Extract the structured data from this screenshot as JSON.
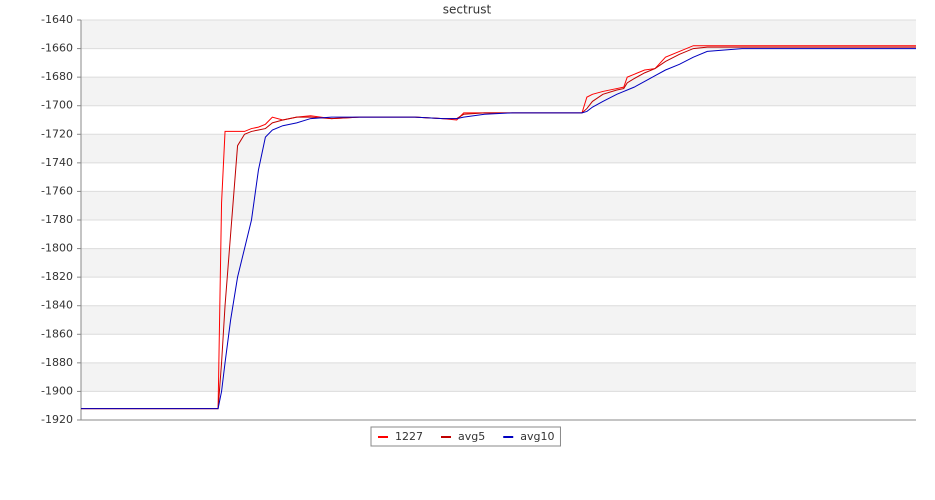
{
  "chart_data": {
    "type": "line",
    "title": "sectrust",
    "x": [
      0,
      19.7,
      20.2,
      20.7,
      21.5,
      22.5,
      23.5,
      24.5,
      25.5,
      26.5,
      27.5,
      29,
      31,
      33,
      36,
      40,
      44,
      48,
      52,
      54,
      55,
      58,
      62,
      66,
      70,
      72,
      72.7,
      73.5,
      75,
      77,
      78,
      78.5,
      79.5,
      81,
      82.5,
      84,
      86,
      88,
      90,
      95,
      100,
      110,
      120
    ],
    "xlim": [
      0,
      120
    ],
    "ylim": [
      -1920,
      -1640
    ],
    "yticks": [
      -1920,
      -1900,
      -1880,
      -1860,
      -1840,
      -1820,
      -1800,
      -1780,
      -1760,
      -1740,
      -1720,
      -1700,
      -1680,
      -1660,
      -1640
    ],
    "grid": true,
    "legend": "bottom",
    "series": [
      {
        "name": "1227",
        "color": "#ff0000",
        "values": [
          -1912,
          -1912,
          -1768,
          -1718,
          -1718,
          -1718,
          -1718,
          -1716,
          -1715,
          -1713,
          -1708,
          -1710,
          -1708,
          -1707,
          -1709,
          -1708,
          -1708,
          -1708,
          -1709,
          -1710,
          -1705,
          -1705,
          -1705,
          -1705,
          -1705,
          -1705,
          -1694,
          -1692,
          -1690,
          -1688,
          -1687,
          -1680,
          -1678,
          -1675,
          -1674,
          -1666,
          -1662,
          -1658,
          -1658,
          -1658,
          -1658,
          -1658,
          -1658
        ]
      },
      {
        "name": "avg5",
        "color": "#c00000",
        "values": [
          -1912,
          -1912,
          -1880,
          -1840,
          -1790,
          -1728,
          -1720,
          -1718,
          -1717,
          -1716,
          -1712,
          -1710,
          -1708,
          -1708,
          -1709,
          -1708,
          -1708,
          -1708,
          -1709,
          -1709,
          -1706,
          -1705,
          -1705,
          -1705,
          -1705,
          -1705,
          -1702,
          -1697,
          -1692,
          -1689,
          -1688,
          -1684,
          -1681,
          -1677,
          -1674,
          -1669,
          -1664,
          -1660,
          -1659,
          -1659,
          -1659,
          -1659,
          -1659
        ]
      },
      {
        "name": "avg10",
        "color": "#0000c0",
        "values": [
          -1912,
          -1912,
          -1900,
          -1880,
          -1850,
          -1820,
          -1800,
          -1780,
          -1745,
          -1722,
          -1717,
          -1714,
          -1712,
          -1709,
          -1708,
          -1708,
          -1708,
          -1708,
          -1709,
          -1709,
          -1708,
          -1706,
          -1705,
          -1705,
          -1705,
          -1705,
          -1704,
          -1701,
          -1697,
          -1692,
          -1690,
          -1689,
          -1687,
          -1683,
          -1679,
          -1675,
          -1671,
          -1666,
          -1662,
          -1660,
          -1660,
          -1660,
          -1660
        ]
      }
    ]
  }
}
